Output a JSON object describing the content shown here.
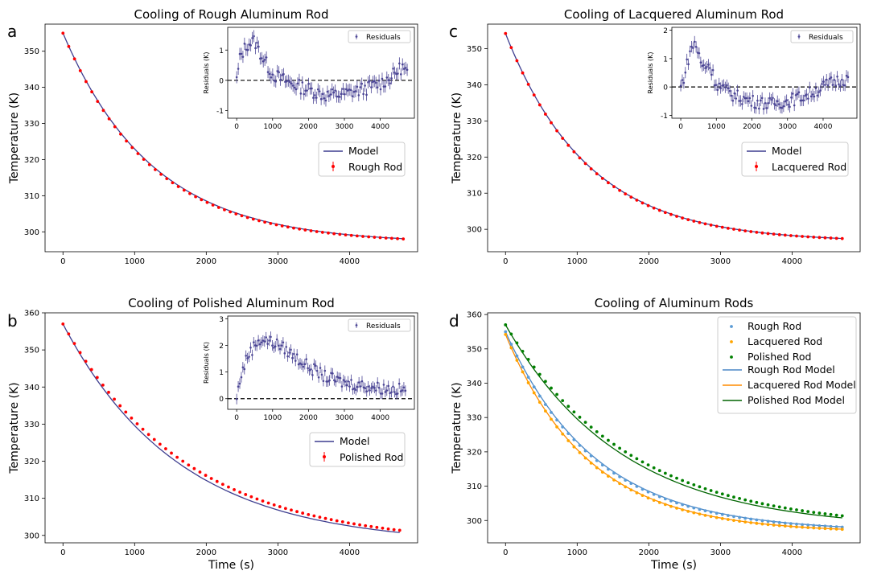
{
  "chart_data": [
    {
      "panel_label": "a",
      "type": "scatter",
      "title": "Cooling of Rough Aluminum Rod",
      "xlabel": "",
      "ylabel": "Temperature (K)",
      "xlim": [
        -250,
        4950
      ],
      "ylim": [
        294.5,
        357.5
      ],
      "xticks": [
        0,
        1000,
        2000,
        3000,
        4000
      ],
      "yticks": [
        300,
        310,
        320,
        330,
        340,
        350
      ],
      "model": {
        "T_env": 296.8,
        "T0": 355.0,
        "tau": 1250,
        "color": "#3d3d8f"
      },
      "data_series": {
        "T_env": 296.8,
        "T0": 355.0,
        "tau": 1230,
        "x_start": 0,
        "x_end": 4750,
        "n": 60,
        "color": "#ff0000"
      },
      "legend": {
        "position": "right",
        "entries": [
          "Model",
          "Rough Rod"
        ]
      },
      "inset": {
        "ylabel": "Residuals (K)",
        "legend": "Residuals",
        "xlim": [
          -250,
          4950
        ],
        "ylim": [
          -1.25,
          1.75
        ],
        "xticks": [
          0,
          1000,
          2000,
          3000,
          4000
        ],
        "yticks": [
          -1,
          0,
          1
        ],
        "zero_line": true,
        "trend": {
          "x": [
            0,
            100,
            300,
            500,
            700,
            1000,
            1500,
            2000,
            2500,
            3000,
            3500,
            4000,
            4300,
            4600,
            4750
          ],
          "y": [
            0.0,
            0.8,
            1.2,
            1.3,
            0.8,
            0.2,
            -0.1,
            -0.3,
            -0.5,
            -0.45,
            -0.3,
            -0.1,
            0.1,
            0.45,
            0.25
          ]
        }
      }
    },
    {
      "panel_label": "c",
      "type": "scatter",
      "title": "Cooling of Lacquered Aluminum Rod",
      "xlabel": "",
      "ylabel": "Temperature (K)",
      "xlim": [
        -250,
        4950
      ],
      "ylim": [
        293.8,
        356.8
      ],
      "xticks": [
        0,
        1000,
        2000,
        3000,
        4000
      ],
      "yticks": [
        300,
        310,
        320,
        330,
        340,
        350
      ],
      "model": {
        "T_env": 296.5,
        "T0": 354.2,
        "tau": 1150,
        "color": "#3d3d8f"
      },
      "data_series": {
        "T_env": 296.5,
        "T0": 354.2,
        "tau": 1140,
        "x_start": 0,
        "x_end": 4700,
        "n": 60,
        "color": "#ff0000"
      },
      "legend": {
        "position": "right",
        "entries": [
          "Model",
          "Lacquered Rod"
        ]
      },
      "inset": {
        "ylabel": "Residuals (K)",
        "legend": "Residuals",
        "xlim": [
          -250,
          4950
        ],
        "ylim": [
          -1.1,
          2.1
        ],
        "xticks": [
          0,
          1000,
          2000,
          3000,
          4000
        ],
        "yticks": [
          -1,
          0,
          1,
          2
        ],
        "zero_line": true,
        "trend": {
          "x": [
            0,
            100,
            250,
            400,
            600,
            800,
            1000,
            1500,
            2000,
            2500,
            3000,
            3500,
            4000,
            4300,
            4700
          ],
          "y": [
            0.0,
            0.4,
            1.2,
            1.6,
            0.7,
            0.8,
            0.1,
            -0.3,
            -0.5,
            -0.6,
            -0.5,
            -0.3,
            0.0,
            0.2,
            0.3
          ]
        }
      }
    },
    {
      "panel_label": "b",
      "type": "scatter",
      "title": "Cooling of Polished Aluminum Rod",
      "xlabel": "Time (s)",
      "ylabel": "Temperature (K)",
      "xlim": [
        -250,
        4950
      ],
      "ylim": [
        298.0,
        360.0
      ],
      "xticks": [
        0,
        1000,
        2000,
        3000,
        4000
      ],
      "yticks": [
        300,
        310,
        320,
        330,
        340,
        350,
        360
      ],
      "model": {
        "T_env": 297.5,
        "T0": 357.0,
        "tau": 1620,
        "color": "#3d3d8f"
      },
      "data_series": {
        "T_env": 297.5,
        "T0": 357.0,
        "tau": 1720,
        "x_start": 0,
        "x_end": 4700,
        "n": 60,
        "color": "#ff0000"
      },
      "legend": {
        "position": "right",
        "entries": [
          "Model",
          "Polished Rod"
        ]
      },
      "inset": {
        "ylabel": "Residuals (K)",
        "legend": "Residuals",
        "xlim": [
          -250,
          4950
        ],
        "ylim": [
          -0.4,
          3.1
        ],
        "xticks": [
          0,
          1000,
          2000,
          3000,
          4000
        ],
        "yticks": [
          0,
          1,
          2,
          3
        ],
        "zero_line": true,
        "trend": {
          "x": [
            0,
            100,
            300,
            600,
            800,
            1200,
            1600,
            2000,
            2500,
            3000,
            3500,
            4000,
            4500,
            4700
          ],
          "y": [
            0.0,
            0.8,
            1.6,
            2.2,
            2.2,
            2.0,
            1.6,
            1.2,
            0.8,
            0.6,
            0.5,
            0.4,
            0.35,
            0.3
          ]
        }
      }
    },
    {
      "panel_label": "d",
      "type": "scatter",
      "title": "Cooling of Aluminum Rods",
      "xlabel": "Time (s)",
      "ylabel": "Temperature (K)",
      "xlim": [
        -250,
        4950
      ],
      "ylim": [
        293.5,
        360.5
      ],
      "xticks": [
        0,
        1000,
        2000,
        3000,
        4000
      ],
      "yticks": [
        300,
        310,
        320,
        330,
        340,
        350,
        360
      ],
      "legend": {
        "position": "top-right"
      },
      "series": [
        {
          "name": "Rough Rod",
          "kind": "points",
          "color": "#5b9bd5",
          "T_env": 296.8,
          "T0": 355.0,
          "tau": 1230,
          "x_start": 0,
          "x_end": 4700,
          "n": 60
        },
        {
          "name": "Lacquered Rod",
          "kind": "points",
          "color": "#ffa500",
          "T_env": 296.5,
          "T0": 354.2,
          "tau": 1140,
          "x_start": 0,
          "x_end": 4700,
          "n": 60
        },
        {
          "name": "Polished Rod",
          "kind": "points",
          "color": "#008000",
          "T_env": 297.5,
          "T0": 357.0,
          "tau": 1720,
          "x_start": 0,
          "x_end": 4700,
          "n": 60
        },
        {
          "name": "Rough Rod Model",
          "kind": "line",
          "color": "#4a86c5",
          "T_env": 296.8,
          "T0": 355.0,
          "tau": 1250,
          "x_start": 0,
          "x_end": 4700
        },
        {
          "name": "Lacquered Rod Model",
          "kind": "line",
          "color": "#ff8c00",
          "T_env": 296.5,
          "T0": 354.2,
          "tau": 1150,
          "x_start": 0,
          "x_end": 4700
        },
        {
          "name": "Polished Rod Model",
          "kind": "line",
          "color": "#006400",
          "T_env": 297.5,
          "T0": 357.0,
          "tau": 1620,
          "x_start": 0,
          "x_end": 4700
        }
      ]
    }
  ]
}
